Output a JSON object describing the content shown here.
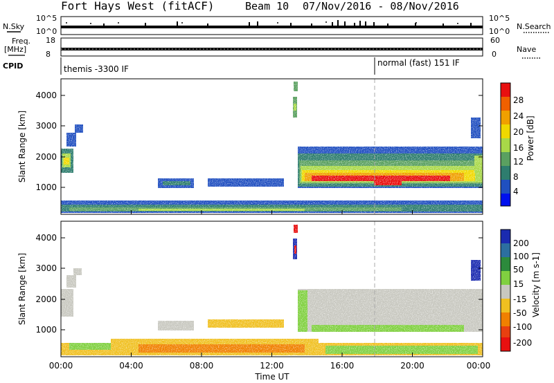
{
  "header": {
    "title": "Fort Hays West (fitACF)",
    "beam": "Beam 10",
    "date_range": "07/Nov/2016 - 08/Nov/2016"
  },
  "strip_panels": {
    "nsky_label": "N.Sky",
    "nsky_ticks": [
      "10^5",
      "10^0"
    ],
    "nsearch_label": "N.Search",
    "nsearch_ticks": [
      "10^5",
      "10^0"
    ],
    "freq_label_1": "Freq.",
    "freq_label_2": "[MHz]",
    "freq_ticks": [
      "18",
      "8"
    ],
    "nave_label": "Nave",
    "nave_ticks": [
      "60",
      "0"
    ],
    "cpid_label": "CPID",
    "cpid_segments": [
      {
        "label": "themis -3300 IF",
        "start_hour": 0
      },
      {
        "label": "normal (fast) 151 IF",
        "start_hour": 18
      }
    ]
  },
  "chart_data": [
    {
      "type": "heatmap",
      "name": "power",
      "ylabel": "Slant Range [km]",
      "xlabel": "",
      "x_range_hours": [
        0,
        24
      ],
      "ylim": [
        180,
        4600
      ],
      "y_ticks": [
        1000,
        2000,
        3000,
        4000
      ],
      "colorbar": {
        "label": "Power [dB]",
        "ticks": [
          "4",
          "8",
          "12",
          "16",
          "20",
          "24",
          "28"
        ],
        "range": [
          0,
          30
        ],
        "colors": [
          "#0010ee",
          "#2050c0",
          "#2e7d6e",
          "#5aa060",
          "#a8d848",
          "#f0d800",
          "#f0a000",
          "#f06000",
          "#e81010"
        ]
      },
      "features": [
        {
          "hours": [
            0,
            1.4
          ],
          "range_km": [
            1400,
            2200
          ],
          "level": "12-20 dB"
        },
        {
          "hours": [
            13.5,
            24
          ],
          "range_km": [
            900,
            2200
          ],
          "level": "up to 28 dB band near 1100-1400 km"
        },
        {
          "hours": [
            0,
            24
          ],
          "range_km": [
            180,
            500
          ],
          "level": "4-20 dB ground scatter band"
        }
      ]
    },
    {
      "type": "heatmap",
      "name": "velocity",
      "ylabel": "Slant Range [km]",
      "xlabel": "Time UT",
      "x_range_hours": [
        0,
        24
      ],
      "x_ticks": [
        "00:00",
        "04:00",
        "08:00",
        "12:00",
        "16:00",
        "20:00",
        "00:00"
      ],
      "ylim": [
        180,
        4600
      ],
      "y_ticks": [
        1000,
        2000,
        3000,
        4000
      ],
      "colorbar": {
        "label": "Velocity [m s-1]",
        "ticks": [
          "200",
          "100",
          "50",
          "15",
          "-15",
          "-50",
          "-100",
          "-200"
        ],
        "colors": [
          "#1a2bb0",
          "#2c6fa0",
          "#2c8a3c",
          "#80d040",
          "#c8c8c0",
          "#f0c020",
          "#f08000",
          "#e84010",
          "#e81010"
        ]
      },
      "features": [
        {
          "hours": [
            13.5,
            24
          ],
          "range_km": [
            900,
            2200
          ],
          "level": "-15 to 15 m/s (ground scatter)"
        },
        {
          "hours": [
            0,
            14
          ],
          "range_km": [
            180,
            600
          ],
          "level": "-15 to -50 m/s"
        }
      ]
    }
  ],
  "colors": {
    "axis": "#000000",
    "dashed_marker": "#aaaaaa"
  }
}
